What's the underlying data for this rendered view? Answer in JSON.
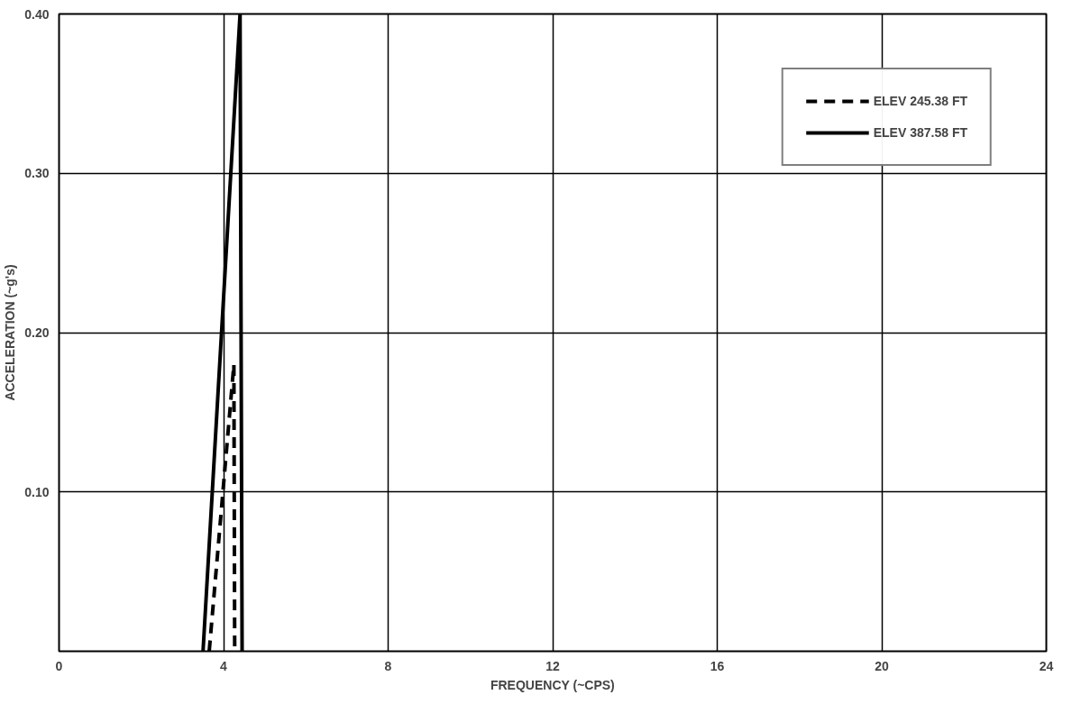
{
  "chart_data": {
    "type": "line",
    "xlabel": "FREQUENCY (~CPS)",
    "ylabel": "ACCELERATION (~g's)",
    "series": [
      {
        "name": "ELEV 245.38 FT",
        "color": "#000000",
        "line_style": "dashed",
        "x": [
          3.65,
          4.25,
          4.27
        ],
        "values": [
          0,
          0.18,
          0
        ]
      },
      {
        "name": "ELEV 387.58 FT",
        "color": "#000000",
        "line_style": "solid",
        "x": [
          3.5,
          4.4,
          4.45
        ],
        "values": [
          0,
          0.4,
          0
        ]
      }
    ],
    "xlim": [
      0,
      24
    ],
    "xticks": [
      0,
      4,
      8,
      12,
      16,
      20,
      24
    ],
    "ylim": [
      0,
      0.4
    ],
    "yticks": [
      {
        "value": 0.1,
        "label": "0.10"
      },
      {
        "value": 0.2,
        "label": "0.20"
      },
      {
        "value": 0.3,
        "label": "0.30"
      },
      {
        "value": 0.4,
        "label": "0.40"
      }
    ],
    "grid": true,
    "legend": "top right",
    "marker": "none"
  }
}
